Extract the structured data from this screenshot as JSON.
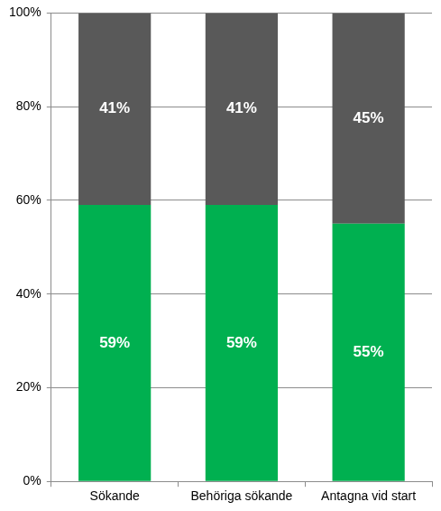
{
  "chart_data": {
    "type": "bar",
    "stacked": true,
    "data_labels": true,
    "grid": true,
    "categories": [
      "Sökande",
      "Behöriga sökande",
      "Antagna vid start"
    ],
    "series": [
      {
        "color": "#00b050",
        "values": [
          59,
          59,
          55
        ],
        "value_labels": [
          "59%",
          "59%",
          "55%"
        ]
      },
      {
        "color": "#595959",
        "values": [
          41,
          41,
          45
        ],
        "value_labels": [
          "41%",
          "41%",
          "45%"
        ]
      }
    ],
    "ylim": [
      0,
      100
    ],
    "yticks": [
      {
        "value": 0,
        "label": "0%"
      },
      {
        "value": 20,
        "label": "20%"
      },
      {
        "value": 40,
        "label": "40%"
      },
      {
        "value": 60,
        "label": "60%"
      },
      {
        "value": 80,
        "label": "80%"
      },
      {
        "value": 100,
        "label": "100%"
      }
    ]
  }
}
